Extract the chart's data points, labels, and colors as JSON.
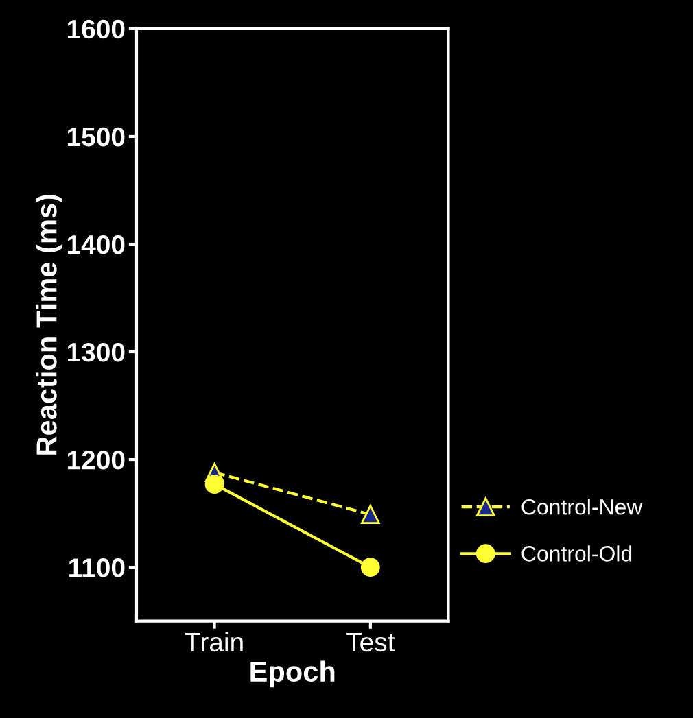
{
  "chart_data": {
    "type": "line",
    "xlabel": "Epoch",
    "ylabel": "Reaction Time (ms)",
    "categories": [
      "Train",
      "Test"
    ],
    "series": [
      {
        "name": "Control-New",
        "color": "#ffff33",
        "values": [
          1188,
          1149
        ],
        "marker": "triangle",
        "line_style": "dashed"
      },
      {
        "name": "Control-Old",
        "color": "#ffff33",
        "values": [
          1177,
          1100
        ],
        "marker": "circle",
        "line_style": "solid"
      }
    ],
    "ylim": [
      1050,
      1600
    ],
    "yticks": [
      1100,
      1200,
      1300,
      1400,
      1500,
      1600
    ],
    "grid": false,
    "legend": "right"
  }
}
